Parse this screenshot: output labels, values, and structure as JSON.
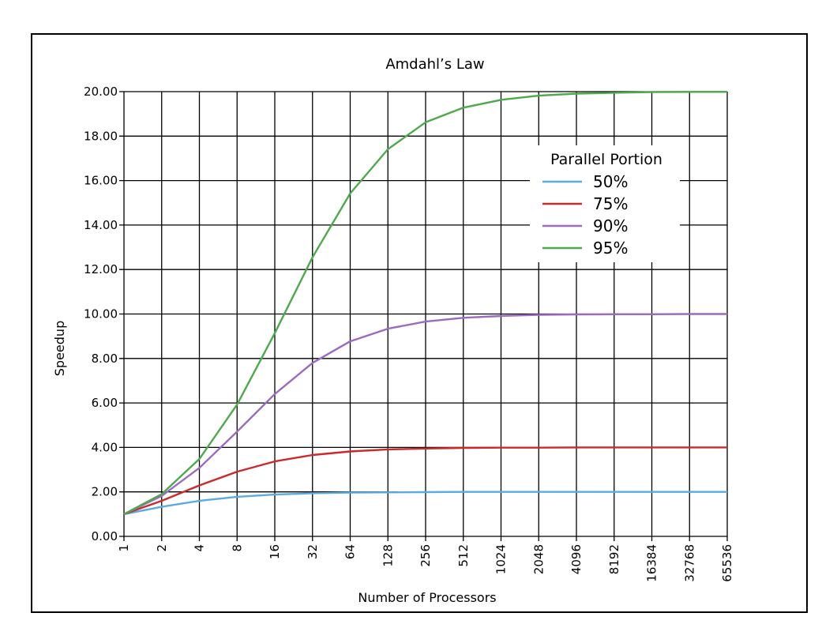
{
  "chart_data": {
    "type": "line",
    "title": "Amdahl’s Law",
    "xlabel": "Number of Processors",
    "ylabel": "Speedup",
    "x_scale": "log2",
    "categories": [
      "1",
      "2",
      "4",
      "8",
      "16",
      "32",
      "64",
      "128",
      "256",
      "512",
      "1024",
      "2048",
      "4096",
      "8192",
      "16384",
      "32768",
      "65536"
    ],
    "ylim": [
      0,
      20
    ],
    "y_ticks": [
      "0.00",
      "2.00",
      "4.00",
      "6.00",
      "8.00",
      "10.00",
      "12.00",
      "14.00",
      "16.00",
      "18.00",
      "20.00"
    ],
    "grid": true,
    "legend": {
      "title": "Parallel Portion",
      "position": "top-right"
    },
    "series": [
      {
        "name": "50%",
        "color": "#5aaae4",
        "values": [
          1.0,
          1.33,
          1.6,
          1.78,
          1.88,
          1.94,
          1.97,
          1.98,
          1.99,
          2.0,
          2.0,
          2.0,
          2.0,
          2.0,
          2.0,
          2.0,
          2.0
        ]
      },
      {
        "name": "75%",
        "color": "#cc2a2a",
        "values": [
          1.0,
          1.6,
          2.29,
          2.91,
          3.37,
          3.66,
          3.82,
          3.91,
          3.95,
          3.98,
          3.99,
          3.99,
          4.0,
          4.0,
          4.0,
          4.0,
          4.0
        ]
      },
      {
        "name": "90%",
        "color": "#9b6bc2",
        "values": [
          1.0,
          1.82,
          3.08,
          4.71,
          6.4,
          7.8,
          8.77,
          9.34,
          9.66,
          9.83,
          9.91,
          9.96,
          9.98,
          9.99,
          9.99,
          10.0,
          10.0
        ]
      },
      {
        "name": "95%",
        "color": "#4caa4c",
        "values": [
          1.0,
          1.9,
          3.48,
          5.93,
          9.14,
          12.55,
          15.42,
          17.41,
          18.62,
          19.28,
          19.63,
          19.82,
          19.91,
          19.95,
          19.98,
          19.99,
          19.99
        ]
      }
    ]
  }
}
